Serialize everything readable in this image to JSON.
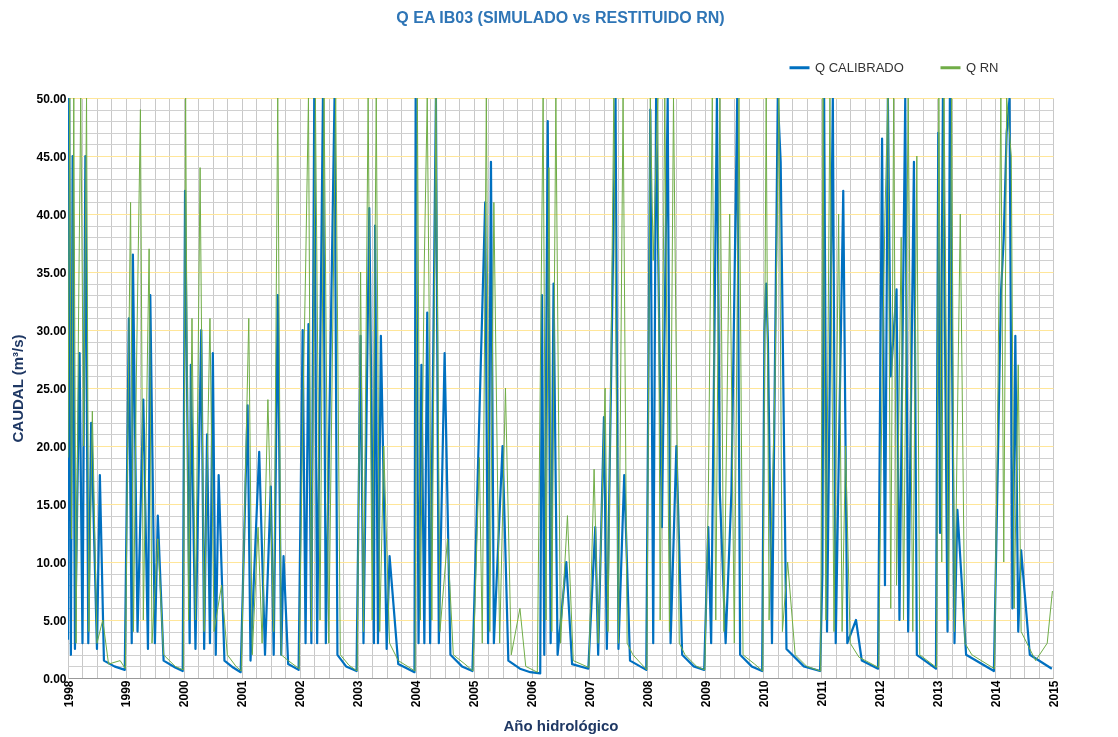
{
  "chart_data": {
    "type": "line",
    "title": "Q EA IB03 (SIMULADO vs RESTITUIDO RN)",
    "xlabel": "Año hidrológico",
    "ylabel": "CAUDAL (m³/s)",
    "xlim": [
      1998,
      2015
    ],
    "xticks": [
      1998,
      {
        "value": 1998.25,
        "label": null
      },
      {
        "value": 1998.5,
        "label": null
      },
      {
        "value": 1998.75,
        "label": null
      },
      1999,
      {
        "value": 1999.25,
        "label": null
      },
      {
        "value": 1999.5,
        "label": null
      },
      {
        "value": 1999.75,
        "label": null
      },
      2000,
      {
        "value": 2000.25,
        "label": null
      },
      {
        "value": 2000.5,
        "label": null
      },
      {
        "value": 2000.75,
        "label": null
      },
      2001,
      {
        "value": 2001.25,
        "label": null
      },
      {
        "value": 2001.5,
        "label": null
      },
      {
        "value": 2001.75,
        "label": null
      },
      2002,
      {
        "value": 2002.25,
        "label": null
      },
      {
        "value": 2002.5,
        "label": null
      },
      {
        "value": 2002.75,
        "label": null
      },
      2003,
      {
        "value": 2003.25,
        "label": null
      },
      {
        "value": 2003.5,
        "label": null
      },
      {
        "value": 2003.75,
        "label": null
      },
      2004,
      {
        "value": 2004.25,
        "label": null
      },
      {
        "value": 2004.5,
        "label": null
      },
      {
        "value": 2004.75,
        "label": null
      },
      2005,
      {
        "value": 2005.25,
        "label": null
      },
      {
        "value": 2005.5,
        "label": null
      },
      {
        "value": 2005.75,
        "label": null
      },
      2006,
      {
        "value": 2006.25,
        "label": null
      },
      {
        "value": 2006.5,
        "label": null
      },
      {
        "value": 2006.75,
        "label": null
      },
      2007,
      {
        "value": 2007.25,
        "label": null
      },
      {
        "value": 2007.5,
        "label": null
      },
      {
        "value": 2007.75,
        "label": null
      },
      2008,
      {
        "value": 2008.25,
        "label": null
      },
      {
        "value": 2008.5,
        "label": null
      },
      {
        "value": 2008.75,
        "label": null
      },
      2009,
      {
        "value": 2009.25,
        "label": null
      },
      {
        "value": 2009.5,
        "label": null
      },
      {
        "value": 2009.75,
        "label": null
      },
      2010,
      {
        "value": 2010.25,
        "label": null
      },
      {
        "value": 2010.5,
        "label": null
      },
      {
        "value": 2010.75,
        "label": null
      },
      2011,
      {
        "value": 2011.25,
        "label": null
      },
      {
        "value": 2011.5,
        "label": null
      },
      {
        "value": 2011.75,
        "label": null
      },
      2012,
      {
        "value": 2012.25,
        "label": null
      },
      {
        "value": 2012.5,
        "label": null
      },
      {
        "value": 2012.75,
        "label": null
      },
      2013,
      {
        "value": 2013.25,
        "label": null
      },
      {
        "value": 2013.5,
        "label": null
      },
      {
        "value": 2013.75,
        "label": null
      },
      2014,
      {
        "value": 2014.25,
        "label": null
      },
      {
        "value": 2014.5,
        "label": null
      },
      {
        "value": 2014.75,
        "label": null
      },
      2015
    ],
    "ylim": [
      0,
      50
    ],
    "yticks": [
      {
        "value": 0,
        "label": "0.00"
      },
      {
        "value": 1,
        "label": null
      },
      {
        "value": 2,
        "label": null
      },
      {
        "value": 3,
        "label": null
      },
      {
        "value": 4,
        "label": null
      },
      {
        "value": 5,
        "label": "5.00"
      },
      {
        "value": 6,
        "label": null
      },
      {
        "value": 7,
        "label": null
      },
      {
        "value": 8,
        "label": null
      },
      {
        "value": 9,
        "label": null
      },
      {
        "value": 10,
        "label": "10.00"
      },
      {
        "value": 11,
        "label": null
      },
      {
        "value": 12,
        "label": null
      },
      {
        "value": 13,
        "label": null
      },
      {
        "value": 14,
        "label": null
      },
      {
        "value": 15,
        "label": "15.00"
      },
      {
        "value": 16,
        "label": null
      },
      {
        "value": 17,
        "label": null
      },
      {
        "value": 18,
        "label": null
      },
      {
        "value": 19,
        "label": null
      },
      {
        "value": 20,
        "label": "20.00"
      },
      {
        "value": 21,
        "label": null
      },
      {
        "value": 22,
        "label": null
      },
      {
        "value": 23,
        "label": null
      },
      {
        "value": 24,
        "label": null
      },
      {
        "value": 25,
        "label": "25.00"
      },
      {
        "value": 26,
        "label": null
      },
      {
        "value": 27,
        "label": null
      },
      {
        "value": 28,
        "label": null
      },
      {
        "value": 29,
        "label": null
      },
      {
        "value": 30,
        "label": "30.00"
      },
      {
        "value": 31,
        "label": null
      },
      {
        "value": 32,
        "label": null
      },
      {
        "value": 33,
        "label": null
      },
      {
        "value": 34,
        "label": null
      },
      {
        "value": 35,
        "label": "35.00"
      },
      {
        "value": 36,
        "label": null
      },
      {
        "value": 37,
        "label": null
      },
      {
        "value": 38,
        "label": null
      },
      {
        "value": 39,
        "label": null
      },
      {
        "value": 40,
        "label": "40.00"
      },
      {
        "value": 41,
        "label": null
      },
      {
        "value": 42,
        "label": null
      },
      {
        "value": 43,
        "label": null
      },
      {
        "value": 44,
        "label": null
      },
      {
        "value": 45,
        "label": "45.00"
      },
      {
        "value": 46,
        "label": null
      },
      {
        "value": 47,
        "label": null
      },
      {
        "value": 48,
        "label": null
      },
      {
        "value": 49,
        "label": null
      },
      {
        "value": 50,
        "label": "50.00"
      }
    ],
    "grid": true,
    "legend": "top right",
    "marker": "none",
    "line_style": "solid",
    "series": [
      {
        "name": "Q CALIBRADO",
        "color": "#0070c0",
        "x": [
          1998.0,
          1998.02,
          1998.05,
          1998.08,
          1998.12,
          1998.2,
          1998.25,
          1998.3,
          1998.35,
          1998.4,
          1998.5,
          1998.55,
          1998.62,
          1998.8,
          1998.98,
          1999.05,
          1999.1,
          1999.12,
          1999.2,
          1999.3,
          1999.38,
          1999.42,
          1999.5,
          1999.55,
          1999.65,
          1999.85,
          1999.98,
          2000.02,
          2000.1,
          2000.12,
          2000.2,
          2000.3,
          2000.35,
          2000.4,
          2000.45,
          2000.5,
          2000.55,
          2000.6,
          2000.7,
          2000.85,
          2000.98,
          2001.1,
          2001.15,
          2001.3,
          2001.4,
          2001.5,
          2001.55,
          2001.62,
          2001.68,
          2001.72,
          2001.8,
          2001.98,
          2002.05,
          2002.1,
          2002.15,
          2002.2,
          2002.25,
          2002.3,
          2002.4,
          2002.45,
          2002.6,
          2002.65,
          2002.8,
          2002.98,
          2003.05,
          2003.1,
          2003.2,
          2003.28,
          2003.3,
          2003.35,
          2003.4,
          2003.5,
          2003.55,
          2003.7,
          2003.98,
          2004.0,
          2004.05,
          2004.1,
          2004.15,
          2004.2,
          2004.25,
          2004.35,
          2004.4,
          2004.5,
          2004.6,
          2004.8,
          2004.98,
          2005.2,
          2005.25,
          2005.3,
          2005.35,
          2005.5,
          2005.6,
          2005.8,
          2005.98,
          2006.15,
          2006.18,
          2006.22,
          2006.28,
          2006.33,
          2006.38,
          2006.45,
          2006.6,
          2006.7,
          2006.98,
          2007.1,
          2007.15,
          2007.25,
          2007.3,
          2007.45,
          2007.5,
          2007.6,
          2007.7,
          2007.98,
          2008.05,
          2008.1,
          2008.15,
          2008.25,
          2008.35,
          2008.4,
          2008.5,
          2008.6,
          2008.8,
          2008.98,
          2009.05,
          2009.1,
          2009.2,
          2009.25,
          2009.35,
          2009.45,
          2009.55,
          2009.6,
          2009.8,
          2009.98,
          2010.02,
          2010.05,
          2010.08,
          2010.15,
          2010.25,
          2010.3,
          2010.4,
          2010.7,
          2010.98,
          2011.02,
          2011.05,
          2011.1,
          2011.2,
          2011.25,
          2011.38,
          2011.45,
          2011.6,
          2011.7,
          2011.98,
          2012.05,
          2012.1,
          2012.15,
          2012.2,
          2012.3,
          2012.35,
          2012.45,
          2012.5,
          2012.6,
          2012.65,
          2012.98,
          2013.02,
          2013.05,
          2013.1,
          2013.18,
          2013.22,
          2013.3,
          2013.35,
          2013.5,
          2013.98,
          2014.05,
          2014.1,
          2014.15,
          2014.2,
          2014.25,
          2014.3,
          2014.35,
          2014.4,
          2014.45,
          2014.6,
          2014.98
        ],
        "values": [
          3.3,
          50,
          2.0,
          45,
          2.5,
          28,
          3,
          45,
          3,
          22,
          2.5,
          17.5,
          1.5,
          1.0,
          0.7,
          31,
          3,
          36.5,
          4,
          24,
          2.5,
          33,
          3,
          14,
          1.5,
          0.9,
          0.6,
          42,
          3,
          27,
          2.5,
          30,
          2.5,
          21,
          3,
          28,
          2,
          17.5,
          1.5,
          0.9,
          0.5,
          23.5,
          1.5,
          19.5,
          2,
          16.5,
          2,
          33,
          2,
          10.5,
          1.2,
          0.7,
          30,
          3,
          30.5,
          3,
          50,
          3,
          50,
          3,
          50,
          2,
          1.0,
          0.6,
          29.5,
          3,
          40.5,
          3,
          39,
          3,
          29.5,
          2.5,
          10.5,
          1.2,
          0.5,
          50,
          3,
          27,
          3,
          31.5,
          3,
          50,
          3,
          28,
          2,
          1,
          0.6,
          41,
          3,
          44.5,
          3,
          20,
          1.5,
          0.8,
          0.5,
          0.4,
          33,
          2,
          48,
          3,
          34,
          2,
          10,
          1.2,
          0.8,
          13,
          2,
          22.5,
          2.5,
          50,
          2.5,
          17.5,
          1.5,
          0.7,
          49,
          3,
          50,
          13,
          50,
          3,
          20,
          2,
          1.0,
          0.7,
          13,
          3,
          50,
          16,
          3,
          16,
          50,
          2,
          1,
          0.6,
          30,
          34,
          29,
          3,
          50,
          44.5,
          2.5,
          1.0,
          0.6,
          9,
          50,
          4,
          50,
          3,
          42,
          3,
          5,
          1.5,
          0.8,
          46.5,
          8,
          50,
          26,
          33.5,
          5,
          50,
          4,
          44.5,
          2,
          0.8,
          47,
          12.5,
          50,
          4,
          50,
          3,
          14.5,
          2,
          0.6,
          19,
          33,
          38,
          47,
          50,
          6,
          29.5,
          4,
          11,
          2,
          0.8
        ]
      },
      {
        "name": "Q RN",
        "color": "#70ad47",
        "x": [
          1998.0,
          1998.03,
          1998.06,
          1998.1,
          1998.14,
          1998.18,
          1998.22,
          1998.27,
          1998.32,
          1998.36,
          1998.42,
          1998.5,
          1998.6,
          1998.7,
          1998.9,
          1998.99,
          1999.03,
          1999.08,
          1999.13,
          1999.18,
          1999.25,
          1999.3,
          1999.4,
          1999.45,
          1999.55,
          1999.65,
          1999.85,
          1999.99,
          2000.03,
          2000.08,
          2000.14,
          2000.2,
          2000.28,
          2000.35,
          2000.45,
          2000.52,
          2000.65,
          2000.75,
          2000.9,
          2000.99,
          2001.12,
          2001.18,
          2001.28,
          2001.35,
          2001.45,
          2001.55,
          2001.62,
          2001.68,
          2001.8,
          2001.99,
          2002.05,
          2002.1,
          2002.15,
          2002.2,
          2002.27,
          2002.35,
          2002.42,
          2002.5,
          2002.62,
          2002.7,
          2002.85,
          2002.99,
          2003.05,
          2003.1,
          2003.18,
          2003.25,
          2003.32,
          2003.38,
          2003.45,
          2003.55,
          2003.7,
          2003.99,
          2004.03,
          2004.08,
          2004.15,
          2004.2,
          2004.28,
          2004.35,
          2004.42,
          2004.55,
          2004.65,
          2004.85,
          2004.99,
          2005.1,
          2005.15,
          2005.22,
          2005.28,
          2005.35,
          2005.45,
          2005.55,
          2005.65,
          2005.8,
          2005.9,
          2006.1,
          2006.2,
          2006.25,
          2006.3,
          2006.35,
          2006.42,
          2006.5,
          2006.62,
          2006.72,
          2006.99,
          2007.08,
          2007.15,
          2007.27,
          2007.32,
          2007.42,
          2007.5,
          2007.58,
          2007.65,
          2007.75,
          2007.99,
          2008.05,
          2008.1,
          2008.18,
          2008.22,
          2008.3,
          2008.38,
          2008.45,
          2008.55,
          2008.65,
          2008.85,
          2008.99,
          2009.05,
          2009.12,
          2009.18,
          2009.25,
          2009.32,
          2009.42,
          2009.5,
          2009.58,
          2009.65,
          2009.85,
          2009.99,
          2010.05,
          2010.1,
          2010.2,
          2010.27,
          2010.33,
          2010.42,
          2010.55,
          2010.75,
          2010.99,
          2011.03,
          2011.08,
          2011.15,
          2011.22,
          2011.3,
          2011.36,
          2011.42,
          2011.5,
          2011.65,
          2011.99,
          2012.05,
          2012.1,
          2012.15,
          2012.2,
          2012.25,
          2012.3,
          2012.38,
          2012.42,
          2012.5,
          2012.58,
          2012.65,
          2012.7,
          2012.99,
          2013.03,
          2013.08,
          2013.12,
          2013.2,
          2013.25,
          2013.3,
          2013.4,
          2013.48,
          2013.6,
          2013.99,
          2014.05,
          2014.1,
          2014.15,
          2014.2,
          2014.28,
          2014.33,
          2014.4,
          2014.45,
          2014.55,
          2014.7,
          2014.9,
          2014.99
        ],
        "values": [
          19,
          50,
          12,
          50,
          3,
          30,
          50,
          20,
          50,
          4,
          23,
          3,
          5,
          1.2,
          1.5,
          0.8,
          20,
          41,
          4,
          26,
          49,
          5,
          37,
          3,
          12,
          2,
          1.0,
          0.7,
          50,
          5,
          31,
          5,
          44,
          4,
          31,
          4,
          8,
          2,
          1.0,
          0.6,
          31,
          2,
          13,
          3,
          24,
          4,
          50,
          2,
          1.5,
          0.8,
          22,
          35,
          50,
          4,
          50,
          5,
          50,
          3,
          50,
          2,
          1.1,
          0.6,
          35,
          4,
          50,
          5,
          50,
          4,
          20,
          3,
          1.5,
          0.6,
          50,
          5,
          36,
          50,
          5,
          50,
          4,
          12,
          2,
          1.2,
          0.6,
          19,
          3,
          50,
          4,
          41,
          3,
          25,
          2,
          6,
          1.0,
          0.5,
          50,
          5,
          44,
          4,
          50,
          3,
          14,
          1.5,
          0.9,
          18,
          3,
          25,
          4,
          50,
          3,
          50,
          3,
          2,
          0.7,
          50,
          36,
          50,
          5,
          50,
          4,
          50,
          3,
          2,
          1.0,
          0.7,
          15,
          50,
          5,
          50,
          4,
          40,
          3,
          50,
          2,
          1.2,
          0.6,
          50,
          5,
          25,
          50,
          4,
          10,
          2,
          1.0,
          0.6,
          50,
          5,
          50,
          4,
          40,
          4,
          20,
          3,
          1.8,
          0.9,
          25,
          40,
          50,
          6,
          50,
          8,
          38,
          5,
          50,
          4,
          45,
          2,
          0.9,
          50,
          10,
          50,
          5,
          50,
          4,
          40,
          3,
          2,
          0.8,
          25,
          50,
          10,
          50,
          45,
          6,
          27,
          4,
          3,
          1.5,
          3,
          7.5
        ]
      }
    ]
  }
}
